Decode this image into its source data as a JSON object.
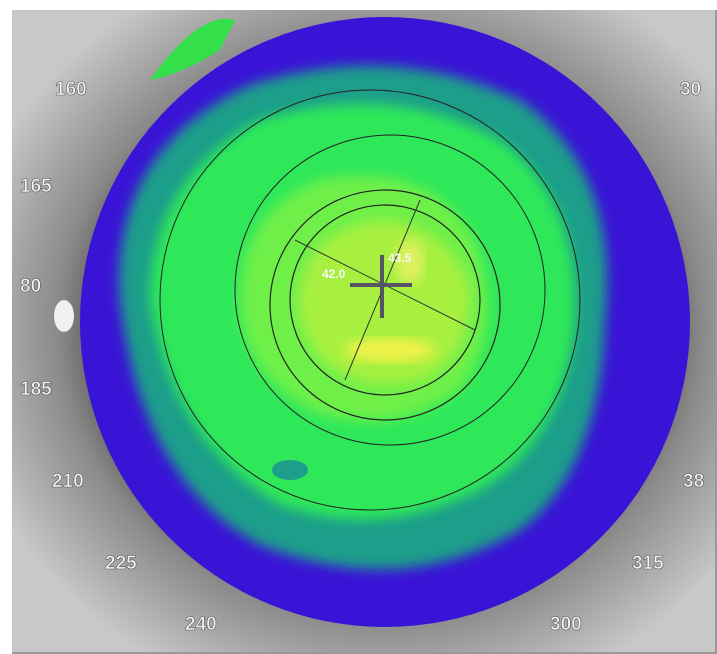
{
  "angle_labels": [
    "160",
    "165",
    "80",
    "185",
    "210",
    "225",
    "240",
    "300",
    "315",
    "30",
    "38"
  ],
  "center_labels": [
    "42.0",
    "43.5"
  ]
}
